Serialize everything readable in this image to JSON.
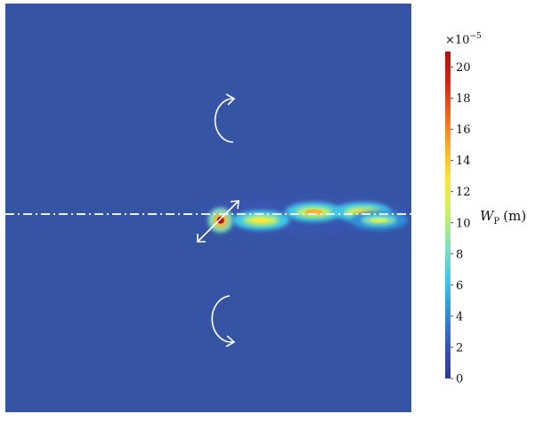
{
  "chart_data": {
    "type": "heatmap",
    "title": "",
    "colorbar": {
      "multiplier_text": "×10",
      "multiplier_exponent": "−5",
      "ticks": [
        "0",
        "2",
        "4",
        "6",
        "8",
        "10",
        "12",
        "14",
        "16",
        "18",
        "20"
      ],
      "tick_values": [
        0,
        2,
        4,
        6,
        8,
        10,
        12,
        14,
        16,
        18,
        20
      ],
      "range": [
        0,
        21
      ],
      "label_symbol": "W",
      "label_subscript": "P",
      "label_unit": "(m)",
      "colormap": [
        "#313695",
        "#3a56b8",
        "#2f8ed8",
        "#3fc7e8",
        "#7fe0c0",
        "#c7ef6a",
        "#f5e93c",
        "#fbb429",
        "#f06a22",
        "#d62516",
        "#b0100f"
      ]
    },
    "field": {
      "background_value": 0.5,
      "background_color": "#3554a4",
      "features": [
        {
          "name": "peak-near-arrow",
          "x": 0.53,
          "y": 0.53,
          "value": 20
        },
        {
          "name": "blob-1-lower",
          "x": 0.63,
          "y": 0.53,
          "value": 13
        },
        {
          "name": "blob-2-upper",
          "x": 0.76,
          "y": 0.51,
          "value": 14
        },
        {
          "name": "blob-3-upper",
          "x": 0.88,
          "y": 0.51,
          "value": 13
        },
        {
          "name": "blob-4-lower",
          "x": 0.92,
          "y": 0.53,
          "value": 11
        }
      ]
    },
    "annotations": {
      "upper_rotation": "clockwise",
      "lower_rotation": "counterclockwise",
      "centerline_style": "dash-dot",
      "arrow": "double-headed diagonal"
    },
    "grid": false,
    "legend": "colorbar-right"
  }
}
